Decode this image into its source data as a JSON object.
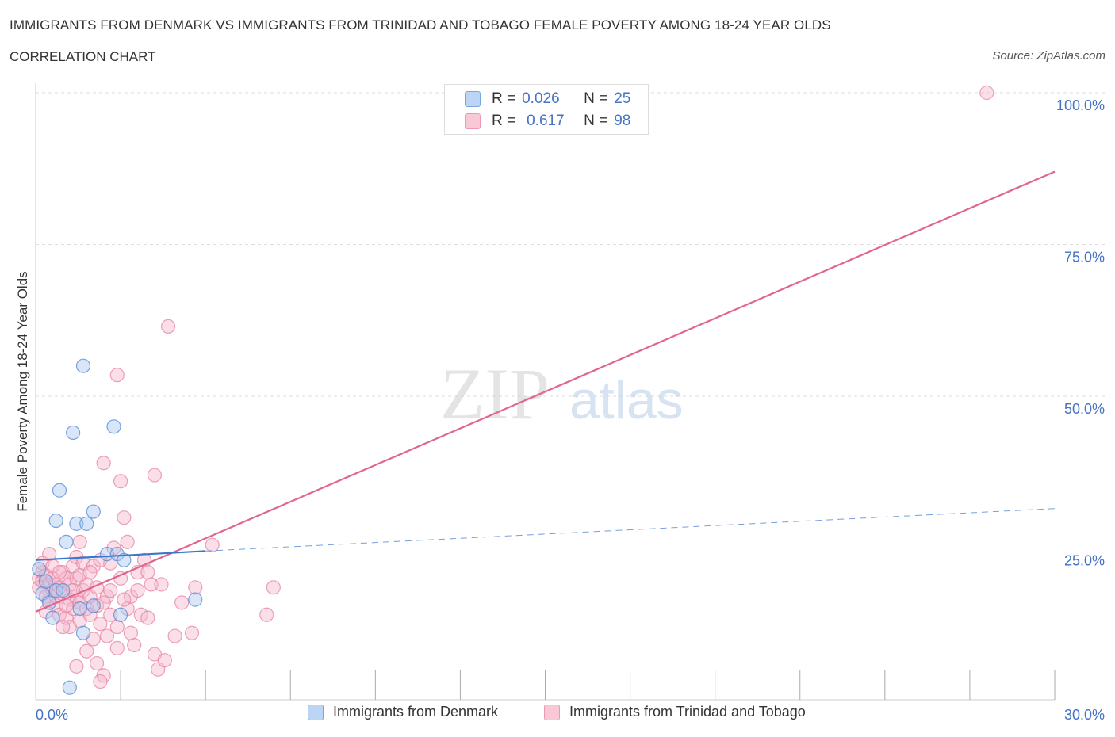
{
  "header": {
    "title": "IMMIGRANTS FROM DENMARK VS IMMIGRANTS FROM TRINIDAD AND TOBAGO FEMALE POVERTY AMONG 18-24 YEAR OLDS",
    "subtitle": "CORRELATION CHART",
    "source": "Source: ZipAtlas.com"
  },
  "legend_top": {
    "rows": [
      {
        "r_label": "R =",
        "r_value": "0.026",
        "n_label": "N =",
        "n_value": "25"
      },
      {
        "r_label": "R =",
        "r_value": "0.617",
        "n_label": "N =",
        "n_value": "98"
      }
    ]
  },
  "colors": {
    "denmark_fill": "#a8c8f0",
    "denmark_stroke": "#5b8fd6",
    "denmark_line": "#3a78cc",
    "trinidad_fill": "#f5b8cb",
    "trinidad_stroke": "#e888a8",
    "trinidad_line": "#e0658f",
    "axis_label": "#4472c4",
    "grid": "#dddddd"
  },
  "watermark": {
    "part1": "ZIP",
    "part2": "atlas"
  },
  "chart_data": {
    "type": "scatter",
    "title": "IMMIGRANTS FROM DENMARK VS IMMIGRANTS FROM TRINIDAD AND TOBAGO FEMALE POVERTY AMONG 18-24 YEAR OLDS",
    "xlabel": "",
    "ylabel": "Female Poverty Among 18-24 Year Olds",
    "xlim": [
      0,
      30
    ],
    "ylim": [
      0,
      100
    ],
    "x_tick_labels": [
      "0.0%",
      "30.0%"
    ],
    "y_tick_labels": [
      {
        "value": 25,
        "label": "25.0%"
      },
      {
        "value": 50,
        "label": "50.0%"
      },
      {
        "value": 75,
        "label": "75.0%"
      },
      {
        "value": 100,
        "label": "100.0%"
      }
    ],
    "series": [
      {
        "name": "Immigrants from Denmark",
        "points": [
          [
            0.1,
            21.5
          ],
          [
            0.2,
            17.5
          ],
          [
            0.4,
            16
          ],
          [
            0.5,
            13.5
          ],
          [
            0.6,
            18
          ],
          [
            0.6,
            29.5
          ],
          [
            0.7,
            34.5
          ],
          [
            0.8,
            18
          ],
          [
            0.9,
            26
          ],
          [
            1.0,
            2
          ],
          [
            1.1,
            44
          ],
          [
            1.2,
            29
          ],
          [
            1.3,
            15
          ],
          [
            1.4,
            11
          ],
          [
            1.4,
            55
          ],
          [
            1.5,
            29
          ],
          [
            1.7,
            31
          ],
          [
            1.7,
            15.5
          ],
          [
            2.1,
            24
          ],
          [
            2.3,
            45
          ],
          [
            2.4,
            24
          ],
          [
            2.5,
            14
          ],
          [
            2.6,
            23
          ],
          [
            4.7,
            16.5
          ],
          [
            0.3,
            19.5
          ]
        ],
        "trend": {
          "x": [
            0,
            5.0
          ],
          "y": [
            23.0,
            24.5
          ]
        },
        "trend_extended": {
          "x": [
            5.0,
            30
          ],
          "y": [
            24.5,
            31.5
          ]
        }
      },
      {
        "name": "Immigrants from Trinidad and Tobago",
        "points": [
          [
            0.1,
            20
          ],
          [
            0.1,
            18.5
          ],
          [
            0.2,
            21
          ],
          [
            0.2,
            19.5
          ],
          [
            0.3,
            17
          ],
          [
            0.3,
            20.5
          ],
          [
            0.4,
            19
          ],
          [
            0.4,
            16.5
          ],
          [
            0.5,
            18
          ],
          [
            0.5,
            20
          ],
          [
            0.6,
            15.5
          ],
          [
            0.6,
            19
          ],
          [
            0.7,
            18.5
          ],
          [
            0.7,
            14
          ],
          [
            0.8,
            21
          ],
          [
            0.8,
            17.5
          ],
          [
            0.9,
            20
          ],
          [
            0.9,
            13.5
          ],
          [
            1.0,
            16.5
          ],
          [
            1.0,
            19
          ],
          [
            1.0,
            12
          ],
          [
            1.1,
            22
          ],
          [
            1.1,
            15
          ],
          [
            1.2,
            17
          ],
          [
            1.2,
            20
          ],
          [
            1.2,
            23.5
          ],
          [
            1.3,
            26
          ],
          [
            1.3,
            16
          ],
          [
            1.3,
            13
          ],
          [
            1.4,
            18
          ],
          [
            1.4,
            22.5
          ],
          [
            1.5,
            15
          ],
          [
            1.5,
            19
          ],
          [
            1.5,
            8
          ],
          [
            1.6,
            17
          ],
          [
            1.6,
            14
          ],
          [
            1.7,
            22
          ],
          [
            1.7,
            10
          ],
          [
            1.8,
            6
          ],
          [
            1.8,
            15.5
          ],
          [
            1.9,
            23
          ],
          [
            1.9,
            12.5
          ],
          [
            2.0,
            4
          ],
          [
            2.0,
            39
          ],
          [
            2.1,
            17
          ],
          [
            2.1,
            10.5
          ],
          [
            2.2,
            14
          ],
          [
            2.2,
            22.5
          ],
          [
            2.3,
            25
          ],
          [
            2.4,
            53.5
          ],
          [
            2.4,
            8.5
          ],
          [
            2.5,
            20
          ],
          [
            2.5,
            36
          ],
          [
            2.6,
            30
          ],
          [
            2.7,
            15
          ],
          [
            2.8,
            17
          ],
          [
            2.9,
            9
          ],
          [
            3.0,
            21
          ],
          [
            3.1,
            14
          ],
          [
            3.2,
            23
          ],
          [
            3.3,
            13.5
          ],
          [
            3.4,
            19
          ],
          [
            3.5,
            7.5
          ],
          [
            3.5,
            37
          ],
          [
            3.6,
            5
          ],
          [
            3.7,
            19
          ],
          [
            3.8,
            6.5
          ],
          [
            3.9,
            61.5
          ],
          [
            4.1,
            10.5
          ],
          [
            4.3,
            16
          ],
          [
            4.6,
            11
          ],
          [
            4.7,
            18.5
          ],
          [
            5.2,
            25.5
          ],
          [
            6.8,
            14
          ],
          [
            7.0,
            18.5
          ],
          [
            28.0,
            100
          ],
          [
            0.2,
            22.5
          ],
          [
            0.3,
            14.5
          ],
          [
            0.5,
            22
          ],
          [
            0.6,
            17
          ],
          [
            0.7,
            21
          ],
          [
            0.9,
            15.5
          ],
          [
            1.1,
            18
          ],
          [
            1.3,
            20.5
          ],
          [
            1.6,
            21
          ],
          [
            1.8,
            18.5
          ],
          [
            2.0,
            16
          ],
          [
            2.2,
            18
          ],
          [
            2.4,
            12
          ],
          [
            2.6,
            16.5
          ],
          [
            2.8,
            11
          ],
          [
            3.0,
            18
          ],
          [
            0.4,
            24
          ],
          [
            0.8,
            12
          ],
          [
            1.2,
            5.5
          ],
          [
            1.9,
            3
          ],
          [
            2.7,
            26
          ],
          [
            3.3,
            21
          ]
        ],
        "trend": {
          "x": [
            0,
            30
          ],
          "y": [
            14.5,
            87.0
          ]
        }
      }
    ],
    "legend": {
      "position": "bottom",
      "labels": [
        "Immigrants from Denmark",
        "Immigrants from Trinidad and Tobago"
      ]
    },
    "grid": true
  }
}
